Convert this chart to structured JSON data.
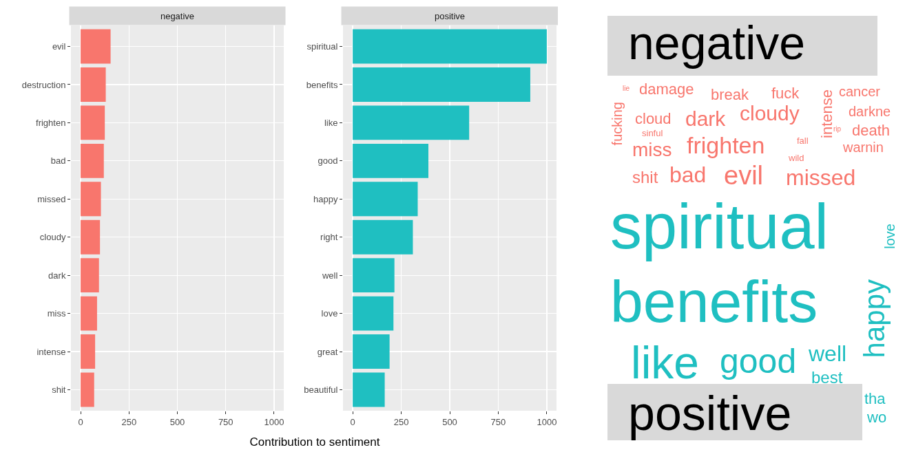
{
  "chart_data": [
    {
      "type": "bar",
      "orientation": "horizontal",
      "title": "negative",
      "xlabel": "Contribution to sentiment",
      "categories": [
        "evil",
        "destruction",
        "frighten",
        "bad",
        "missed",
        "cloudy",
        "dark",
        "miss",
        "intense",
        "shit"
      ],
      "values": [
        155,
        130,
        125,
        120,
        105,
        100,
        95,
        85,
        75,
        70
      ],
      "color": "#f8766d",
      "xlim": [
        -50,
        1050
      ],
      "xticks": [
        0,
        250,
        500,
        750,
        1000
      ],
      "grid": true
    },
    {
      "type": "bar",
      "orientation": "horizontal",
      "title": "positive",
      "categories": [
        "spiritual",
        "benefits",
        "like",
        "good",
        "happy",
        "right",
        "well",
        "love",
        "great",
        "beautiful"
      ],
      "values": [
        1000,
        915,
        600,
        390,
        335,
        310,
        215,
        210,
        190,
        165
      ],
      "color": "#1fbfc1",
      "xlim": [
        -50,
        1050
      ],
      "xticks": [
        0,
        250,
        500,
        750,
        1000
      ],
      "grid": true
    },
    {
      "type": "other",
      "annotations": [
        "negative",
        "damage",
        "break",
        "fuck",
        "cancer",
        "cloud",
        "dark",
        "cloudy",
        "intense",
        "darkne",
        "fucking",
        "sinful",
        "rip",
        "death",
        "miss",
        "frighten",
        "fall",
        "wild",
        "warnin",
        "shit",
        "bad",
        "evil",
        "missed",
        "lie",
        "positive",
        "spiritual",
        "benefits",
        "like",
        "good",
        "well",
        "best",
        "happy",
        "tha",
        "wo",
        "love"
      ],
      "colors": [
        "#000000",
        "#f8766d",
        "#f8766d",
        "#f8766d",
        "#f8766d",
        "#f8766d",
        "#f8766d",
        "#f8766d",
        "#f8766d",
        "#f8766d",
        "#f8766d",
        "#f8766d",
        "#f8766d",
        "#f8766d",
        "#f8766d",
        "#f8766d",
        "#f8766d",
        "#f8766d",
        "#f8766d",
        "#f8766d",
        "#f8766d",
        "#f8766d",
        "#f8766d",
        "#f8766d",
        "#000000",
        "#1fbfc1",
        "#1fbfc1",
        "#1fbfc1",
        "#1fbfc1",
        "#1fbfc1",
        "#1fbfc1",
        "#1fbfc1",
        "#1fbfc1",
        "#1fbfc1",
        "#1fbfc1"
      ]
    }
  ]
}
